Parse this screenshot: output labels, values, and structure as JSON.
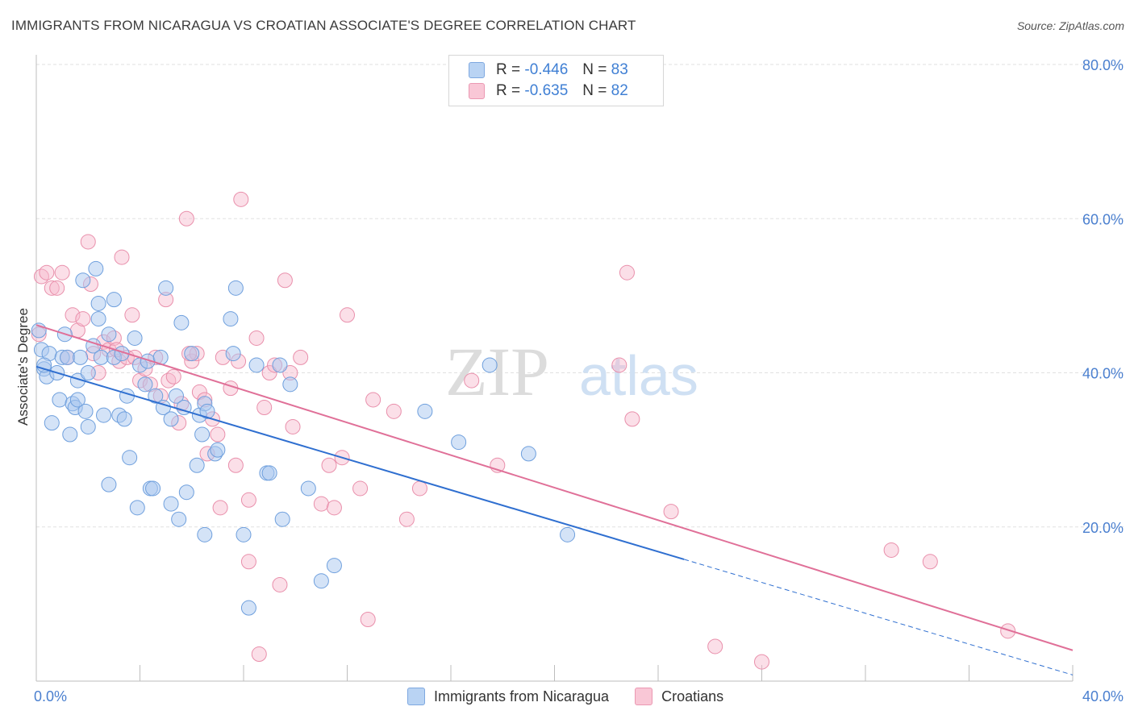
{
  "header": {
    "title": "IMMIGRANTS FROM NICARAGUA VS CROATIAN ASSOCIATE'S DEGREE CORRELATION CHART",
    "source": "Source: ZipAtlas.com"
  },
  "watermark": {
    "zip": "ZIP",
    "atlas": "atlas"
  },
  "legend_top": {
    "rows": [
      {
        "r_label": "R =",
        "r_value": "-0.446",
        "n_label": "N =",
        "n_value": "83"
      },
      {
        "r_label": "R =",
        "r_value": "-0.635",
        "n_label": "N =",
        "n_value": "82"
      }
    ]
  },
  "legend_bottom": {
    "items": [
      {
        "label": "Immigrants from Nicaragua"
      },
      {
        "label": "Croatians"
      }
    ]
  },
  "colors": {
    "blue_fill": "#a9c8ef",
    "blue_stroke": "#6e9fdd",
    "blue_line": "#2f6fd0",
    "pink_fill": "#f6b9cb",
    "pink_stroke": "#e98fab",
    "pink_line": "#e07098",
    "tick_label": "#4a7fcf",
    "grid": "#e1e1e1"
  },
  "chart_data": {
    "type": "scatter",
    "title": "IMMIGRANTS FROM NICARAGUA VS CROATIAN ASSOCIATE'S DEGREE CORRELATION CHART",
    "xlabel": "",
    "ylabel": "Associate's Degree",
    "xlim": [
      0,
      40
    ],
    "ylim": [
      0,
      80
    ],
    "x_tick_labels": [
      "0.0%",
      "40.0%"
    ],
    "y_ticks": [
      20,
      40,
      60,
      80
    ],
    "y_tick_labels": [
      "20.0%",
      "40.0%",
      "60.0%",
      "80.0%"
    ],
    "grid": true,
    "legend_position": "bottom",
    "series": [
      {
        "name": "Immigrants from Nicaragua",
        "color": "#a9c8ef",
        "trend": {
          "x": [
            0,
            25
          ],
          "y": [
            40.8,
            15.8
          ],
          "dashed_to": [
            40,
            0.8
          ]
        },
        "points": [
          [
            0.1,
            45.5
          ],
          [
            0.2,
            43.0
          ],
          [
            0.3,
            40.5
          ],
          [
            0.4,
            39.5
          ],
          [
            0.5,
            42.5
          ],
          [
            0.6,
            33.5
          ],
          [
            0.8,
            40.0
          ],
          [
            0.9,
            36.5
          ],
          [
            1.0,
            42.0
          ],
          [
            1.1,
            45.0
          ],
          [
            1.2,
            42.0
          ],
          [
            1.3,
            32.0
          ],
          [
            1.4,
            36.0
          ],
          [
            1.5,
            35.5
          ],
          [
            1.6,
            36.5
          ],
          [
            1.6,
            39.0
          ],
          [
            1.7,
            42.0
          ],
          [
            1.8,
            52.0
          ],
          [
            1.9,
            35.0
          ],
          [
            2.0,
            40.0
          ],
          [
            2.0,
            33.0
          ],
          [
            2.2,
            43.5
          ],
          [
            2.3,
            53.5
          ],
          [
            2.4,
            47.0
          ],
          [
            2.4,
            49.0
          ],
          [
            2.5,
            42.0
          ],
          [
            2.6,
            34.5
          ],
          [
            2.8,
            45.0
          ],
          [
            2.8,
            25.5
          ],
          [
            3.0,
            42.0
          ],
          [
            3.0,
            49.5
          ],
          [
            3.2,
            34.5
          ],
          [
            3.3,
            42.5
          ],
          [
            3.4,
            34.0
          ],
          [
            3.5,
            37.0
          ],
          [
            3.6,
            29.0
          ],
          [
            3.8,
            44.5
          ],
          [
            3.9,
            22.5
          ],
          [
            4.0,
            41.0
          ],
          [
            4.2,
            38.5
          ],
          [
            4.3,
            41.5
          ],
          [
            4.4,
            25.0
          ],
          [
            4.5,
            25.0
          ],
          [
            4.6,
            37.0
          ],
          [
            4.8,
            42.0
          ],
          [
            4.9,
            35.5
          ],
          [
            5.0,
            51.0
          ],
          [
            5.2,
            34.0
          ],
          [
            5.2,
            23.0
          ],
          [
            5.4,
            37.0
          ],
          [
            5.5,
            21.0
          ],
          [
            5.6,
            46.5
          ],
          [
            5.7,
            35.5
          ],
          [
            5.8,
            24.5
          ],
          [
            6.0,
            42.5
          ],
          [
            6.2,
            28.0
          ],
          [
            6.3,
            34.5
          ],
          [
            6.4,
            32.0
          ],
          [
            6.5,
            36.0
          ],
          [
            6.5,
            19.0
          ],
          [
            6.6,
            35.0
          ],
          [
            6.9,
            29.5
          ],
          [
            7.0,
            30.0
          ],
          [
            7.5,
            47.0
          ],
          [
            7.6,
            42.5
          ],
          [
            7.7,
            51.0
          ],
          [
            8.0,
            19.0
          ],
          [
            8.2,
            9.5
          ],
          [
            8.5,
            41.0
          ],
          [
            8.9,
            27.0
          ],
          [
            9.0,
            27.0
          ],
          [
            9.4,
            41.0
          ],
          [
            9.5,
            21.0
          ],
          [
            9.8,
            38.5
          ],
          [
            10.5,
            25.0
          ],
          [
            11.0,
            13.0
          ],
          [
            11.5,
            15.0
          ],
          [
            15.0,
            35.0
          ],
          [
            16.3,
            31.0
          ],
          [
            17.5,
            41.0
          ],
          [
            19.0,
            29.5
          ],
          [
            20.5,
            19.0
          ],
          [
            0.3,
            41.0
          ]
        ]
      },
      {
        "name": "Croatians",
        "color": "#f6b9cb",
        "trend": {
          "x": [
            0,
            40
          ],
          "y": [
            46.2,
            4.0
          ]
        },
        "points": [
          [
            0.1,
            45.0
          ],
          [
            0.2,
            52.5
          ],
          [
            0.4,
            53.0
          ],
          [
            0.6,
            51.0
          ],
          [
            0.8,
            51.0
          ],
          [
            1.0,
            53.0
          ],
          [
            1.2,
            42.0
          ],
          [
            1.4,
            47.5
          ],
          [
            1.6,
            45.5
          ],
          [
            1.8,
            47.0
          ],
          [
            2.0,
            57.0
          ],
          [
            2.1,
            51.5
          ],
          [
            2.2,
            42.5
          ],
          [
            2.4,
            40.0
          ],
          [
            2.6,
            44.0
          ],
          [
            2.8,
            43.0
          ],
          [
            3.0,
            44.5
          ],
          [
            3.2,
            41.5
          ],
          [
            3.3,
            55.0
          ],
          [
            3.5,
            42.0
          ],
          [
            3.7,
            47.5
          ],
          [
            3.8,
            42.0
          ],
          [
            4.0,
            39.0
          ],
          [
            4.2,
            40.5
          ],
          [
            4.4,
            38.5
          ],
          [
            4.6,
            42.0
          ],
          [
            4.8,
            37.0
          ],
          [
            5.0,
            49.5
          ],
          [
            5.1,
            39.0
          ],
          [
            5.3,
            39.5
          ],
          [
            5.5,
            33.5
          ],
          [
            5.6,
            36.0
          ],
          [
            5.8,
            60.0
          ],
          [
            6.0,
            41.5
          ],
          [
            6.2,
            42.5
          ],
          [
            6.3,
            37.5
          ],
          [
            6.5,
            36.5
          ],
          [
            6.6,
            29.5
          ],
          [
            6.8,
            34.0
          ],
          [
            7.0,
            32.0
          ],
          [
            7.1,
            22.5
          ],
          [
            7.2,
            42.0
          ],
          [
            7.5,
            38.0
          ],
          [
            7.7,
            28.0
          ],
          [
            7.8,
            41.5
          ],
          [
            7.9,
            62.5
          ],
          [
            8.2,
            23.5
          ],
          [
            8.2,
            15.5
          ],
          [
            8.5,
            44.5
          ],
          [
            8.6,
            3.5
          ],
          [
            8.8,
            35.5
          ],
          [
            9.0,
            40.0
          ],
          [
            9.2,
            41.0
          ],
          [
            9.4,
            12.5
          ],
          [
            9.6,
            52.0
          ],
          [
            9.8,
            40.0
          ],
          [
            9.9,
            33.0
          ],
          [
            10.2,
            42.0
          ],
          [
            11.0,
            23.0
          ],
          [
            11.3,
            28.0
          ],
          [
            11.5,
            22.5
          ],
          [
            11.8,
            29.0
          ],
          [
            12.0,
            47.5
          ],
          [
            12.5,
            25.0
          ],
          [
            12.8,
            8.0
          ],
          [
            13.0,
            36.5
          ],
          [
            13.8,
            35.0
          ],
          [
            14.3,
            21.0
          ],
          [
            14.8,
            25.0
          ],
          [
            16.8,
            39.0
          ],
          [
            17.8,
            28.0
          ],
          [
            22.5,
            41.0
          ],
          [
            22.8,
            53.0
          ],
          [
            23.0,
            34.0
          ],
          [
            24.5,
            22.0
          ],
          [
            26.2,
            4.5
          ],
          [
            28.0,
            2.5
          ],
          [
            33.0,
            17.0
          ],
          [
            34.5,
            15.5
          ],
          [
            37.5,
            6.5
          ],
          [
            3.1,
            43.0
          ],
          [
            5.9,
            42.5
          ]
        ]
      }
    ]
  }
}
